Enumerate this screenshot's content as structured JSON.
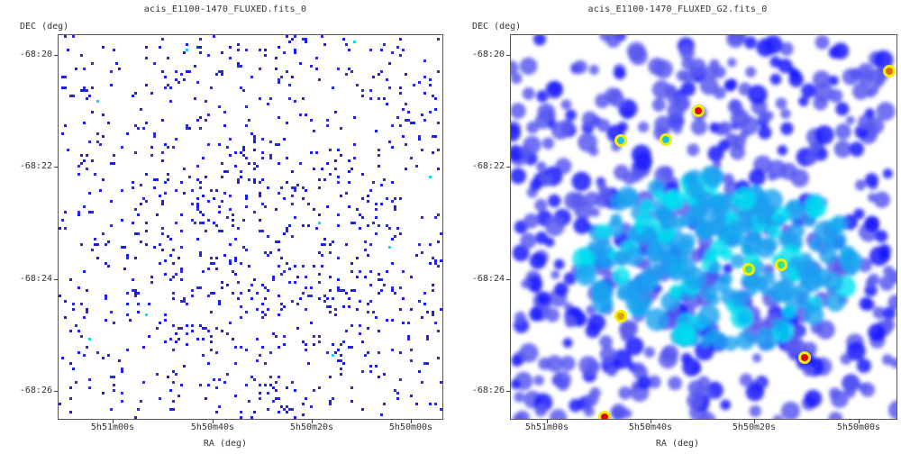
{
  "panels": [
    {
      "title": "acis_E1100-1470_FLUXED.fits_0",
      "ylabel": "DEC (deg)",
      "xlabel": "RA (deg)",
      "yticks": [
        "-68:20",
        "-68:22",
        "-68:24",
        "-68:26"
      ],
      "xticks": [
        "5h51m00s",
        "5h50m40s",
        "5h50m20s",
        "5h50m00s"
      ],
      "image": "raw-event-map"
    },
    {
      "title": "acis_E1100-1470_FLUXED_G2.fits_0",
      "ylabel": "DEC (deg)",
      "xlabel": "RA (deg)",
      "yticks": [
        "-68:20",
        "-68:22",
        "-68:24",
        "-68:26"
      ],
      "xticks": [
        "5h51m00s",
        "5h50m40s",
        "5h50m20s",
        "5h50m00s"
      ],
      "image": "smoothed-map"
    }
  ],
  "colors": {
    "low": "#1a1aff",
    "mid": "#5a5af0",
    "cyan": "#00e0f0",
    "green": "#40e080",
    "yellow": "#f0f000",
    "red": "#e00000"
  }
}
